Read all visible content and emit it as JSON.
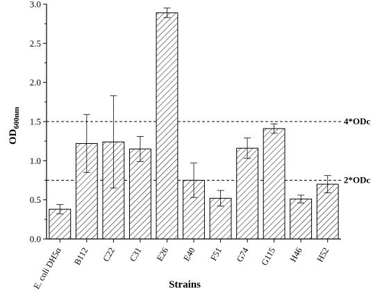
{
  "chart_data": {
    "type": "bar",
    "categories": [
      "E. coli DH5α",
      "B112",
      "C22",
      "C31",
      "E26",
      "E40",
      "F51",
      "G74",
      "G115",
      "H46",
      "H52"
    ],
    "values": [
      0.38,
      1.22,
      1.24,
      1.15,
      2.89,
      0.75,
      0.52,
      1.16,
      1.41,
      0.51,
      0.7
    ],
    "errors": [
      0.06,
      0.37,
      0.59,
      0.16,
      0.06,
      0.22,
      0.1,
      0.13,
      0.06,
      0.05,
      0.11
    ],
    "xlabel": "Strains",
    "ylabel": "OD",
    "ylabel_subscript": "600nm",
    "ylim": [
      0,
      3.0
    ],
    "yticks": [
      "0.0",
      "0.5",
      "1.0",
      "1.5",
      "2.0",
      "2.5",
      "3.0"
    ],
    "ytick_values": [
      0,
      0.5,
      1.0,
      1.5,
      2.0,
      2.5,
      3.0
    ],
    "bar_fill": "hatched",
    "grid": false,
    "reference_lines": [
      {
        "label": "4*ODc",
        "value": 1.5
      },
      {
        "label": "2*ODc",
        "value": 0.75
      }
    ],
    "colors": {
      "bar_edge": "#000000",
      "hatch": "#000000",
      "background": "#ffffff"
    }
  }
}
